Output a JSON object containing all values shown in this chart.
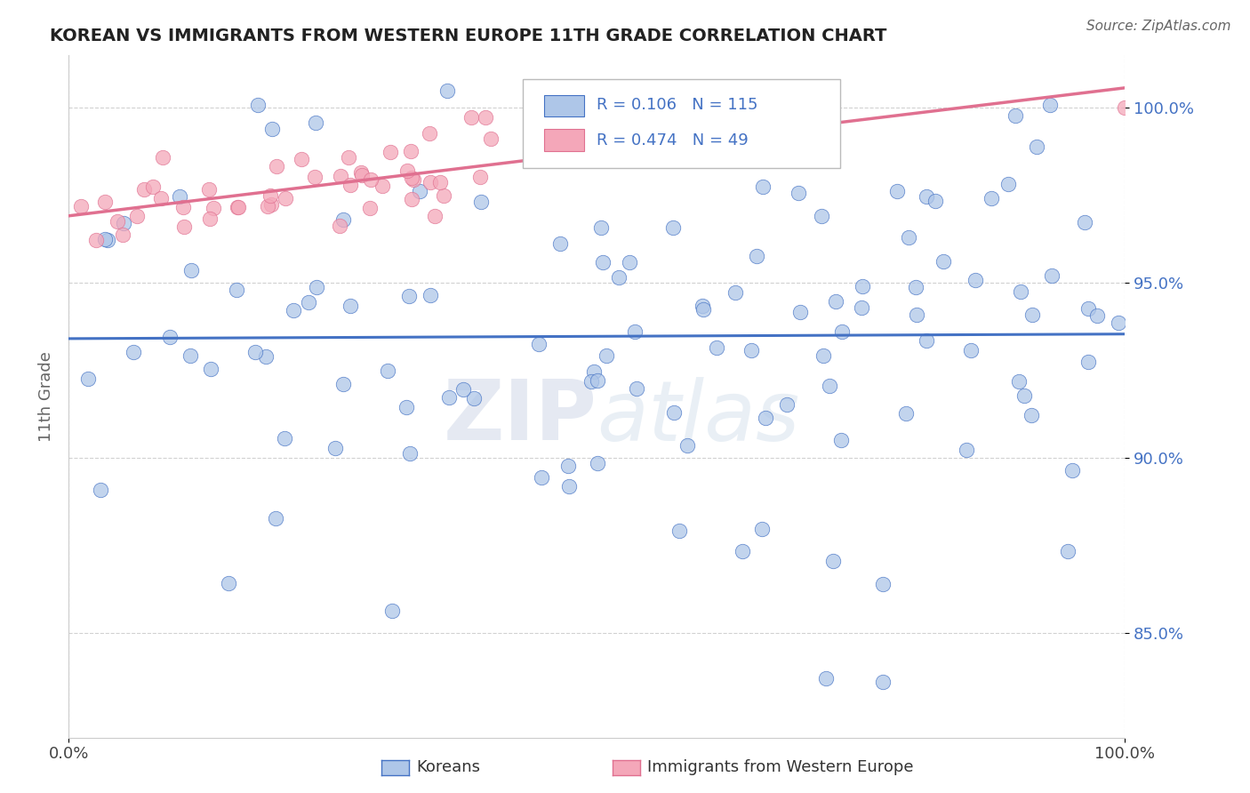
{
  "title": "KOREAN VS IMMIGRANTS FROM WESTERN EUROPE 11TH GRADE CORRELATION CHART",
  "source": "Source: ZipAtlas.com",
  "ylabel": "11th Grade",
  "watermark": "ZIPatlas",
  "xmin": 0.0,
  "xmax": 100.0,
  "ymin": 82.0,
  "ymax": 101.5,
  "legend_r_korean": "0.106",
  "legend_n_korean": "115",
  "legend_r_western": "0.474",
  "legend_n_western": "49",
  "korean_color": "#aec6e8",
  "western_color": "#f4a7b9",
  "korean_line_color": "#4472c4",
  "western_line_color": "#e07090",
  "background_color": "#ffffff",
  "grid_color": "#cccccc",
  "ytick_vals": [
    85.0,
    90.0,
    95.0,
    100.0
  ]
}
